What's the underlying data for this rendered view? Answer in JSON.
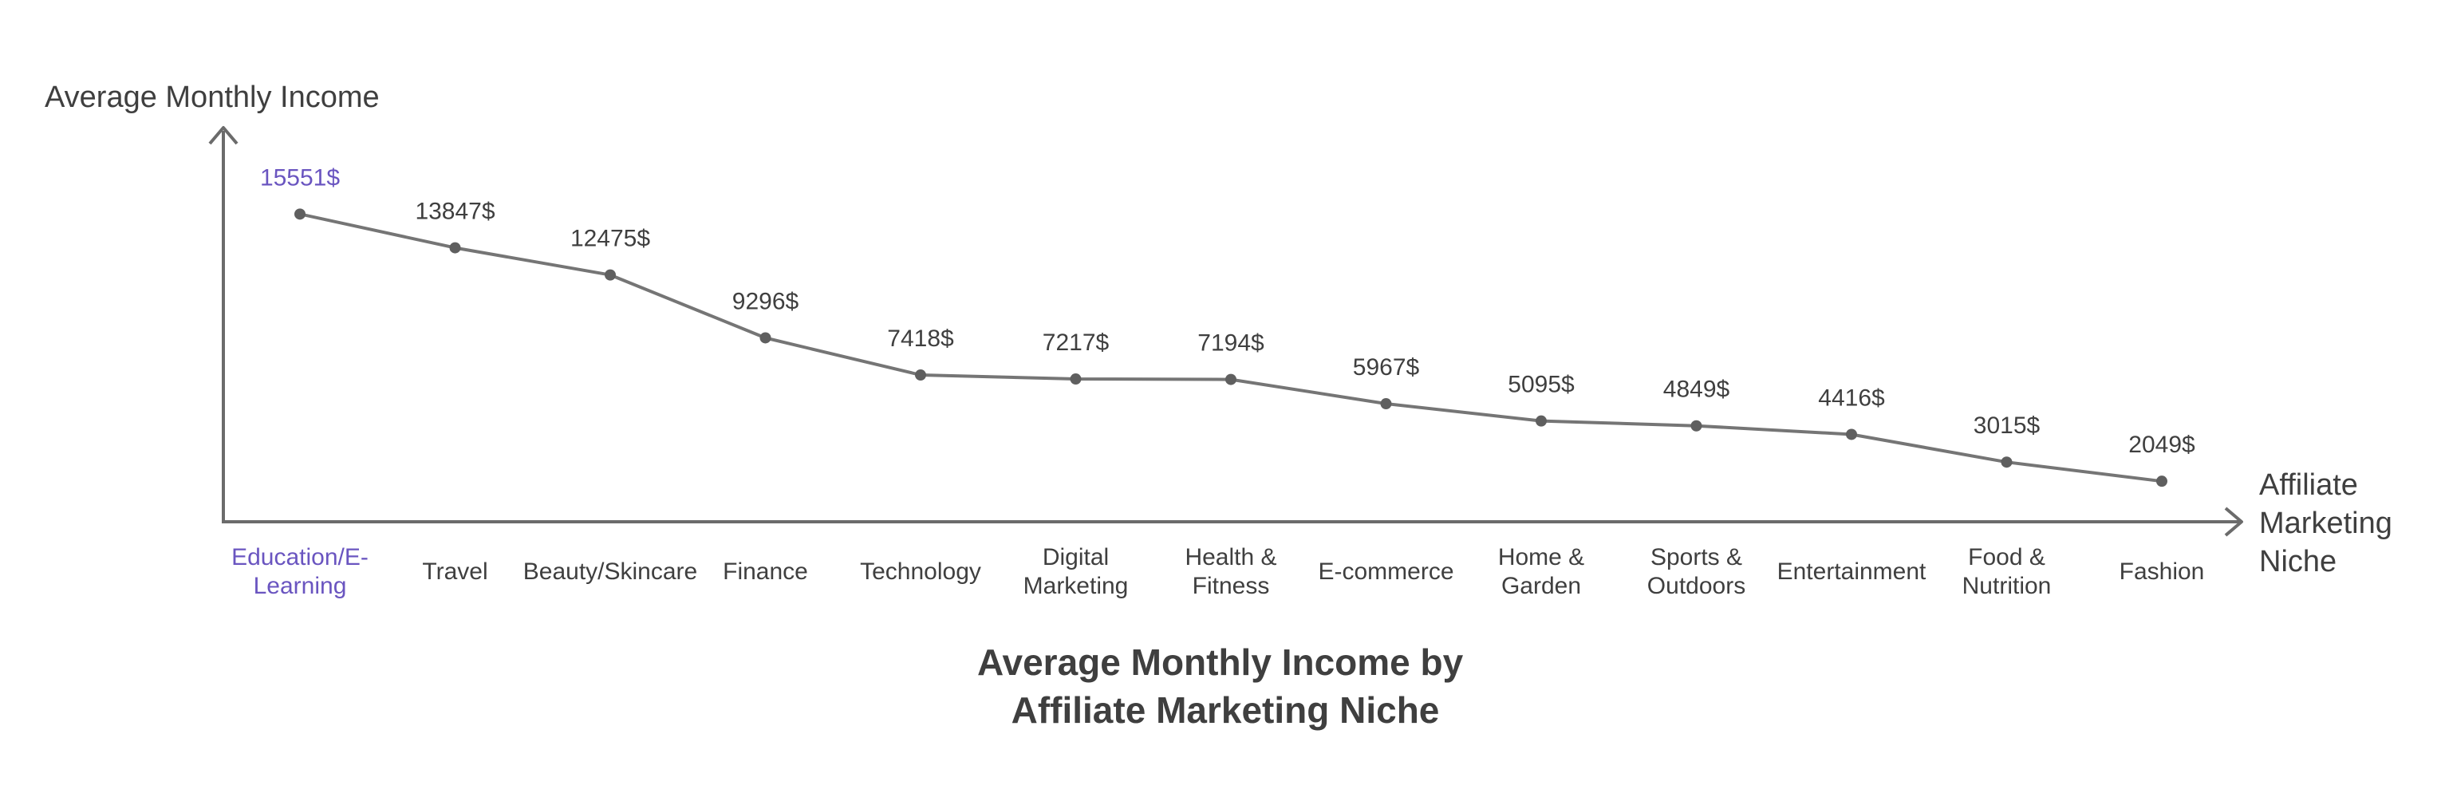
{
  "colors": {
    "axis": "#6b6b6b",
    "line": "#757575",
    "point": "#5f5f5f",
    "text": "#3f3f3f",
    "highlight": "#6a55c0"
  },
  "chart_data": {
    "type": "line",
    "title": "Average Monthly Income by Affiliate Marketing Niche",
    "title_lines": [
      "Average Monthly Income by",
      "Affiliate Marketing Niche"
    ],
    "ylabel": "Average Monthly Income",
    "xlabel": "Affiliate Marketing Niche",
    "xlabel_lines": [
      "Affiliate",
      "Marketing",
      "Niche"
    ],
    "ylim": [
      0,
      17500
    ],
    "grid": false,
    "highlight_index": 0,
    "categories": [
      "Education/E-Learning",
      "Travel",
      "Beauty/Skincare",
      "Finance",
      "Technology",
      "Digital Marketing",
      "Health & Fitness",
      "E-commerce",
      "Home & Garden",
      "Sports & Outdoors",
      "Entertainment",
      "Food & Nutrition",
      "Fashion"
    ],
    "category_lines": [
      [
        "Education/E-",
        "Learning"
      ],
      [
        "Travel"
      ],
      [
        "Beauty/Skincare"
      ],
      [
        "Finance"
      ],
      [
        "Technology"
      ],
      [
        "Digital",
        "Marketing"
      ],
      [
        "Health &",
        "Fitness"
      ],
      [
        "E-commerce"
      ],
      [
        "Home &",
        "Garden"
      ],
      [
        "Sports &",
        "Outdoors"
      ],
      [
        "Entertainment"
      ],
      [
        "Food &",
        "Nutrition"
      ],
      [
        "Fashion"
      ]
    ],
    "values": [
      15551,
      13847,
      12475,
      9296,
      7418,
      7217,
      7194,
      5967,
      5095,
      4849,
      4416,
      3015,
      2049
    ],
    "value_labels": [
      "15551$",
      "13847$",
      "12475$",
      "9296$",
      "7418$",
      "7217$",
      "7194$",
      "5967$",
      "5095$",
      "4849$",
      "4416$",
      "3015$",
      "2049$"
    ]
  }
}
